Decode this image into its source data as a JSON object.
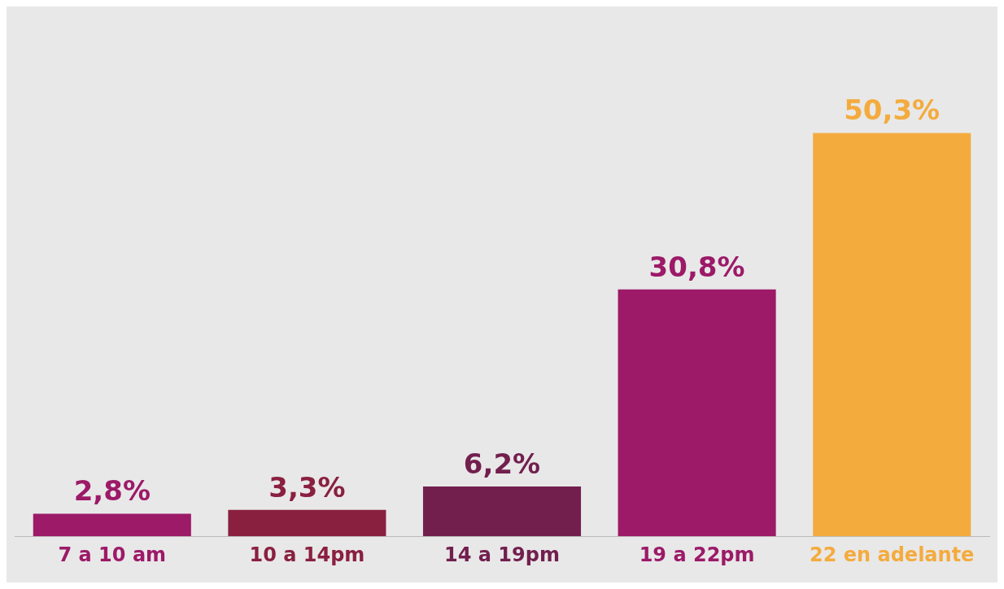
{
  "chart_data": {
    "type": "bar",
    "categories": [
      "7 a 10 am",
      "10 a 14pm",
      "14 a 19pm",
      "19 a 22pm",
      "22 en adelante"
    ],
    "values": [
      2.8,
      3.3,
      6.2,
      30.8,
      50.3
    ],
    "colors": [
      "#9c1a68",
      "#8a2040",
      "#721f4e",
      "#9c1a68",
      "#f4ab3e"
    ],
    "value_labels": [
      "2,8%",
      "3,3%",
      "6,2%",
      "30,8%",
      "50,3%"
    ],
    "grid": false,
    "legend": false
  }
}
